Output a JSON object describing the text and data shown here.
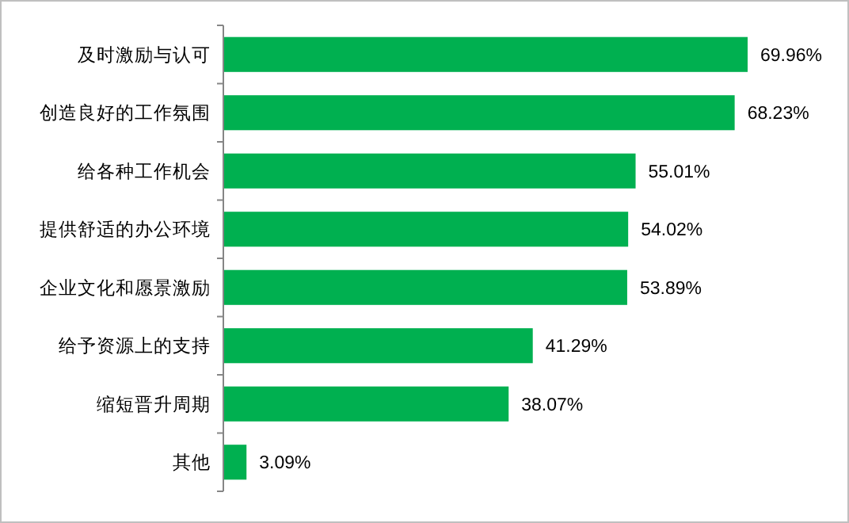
{
  "chart_data": {
    "type": "bar",
    "orientation": "horizontal",
    "color": "#00b050",
    "categories": [
      "及时激励与认可",
      "创造良好的工作氛围",
      "给各种工作机会",
      "提供舒适的办公环境",
      "企业文化和愿景激励",
      "给予资源上的支持",
      "缩短晋升周期",
      "其他"
    ],
    "values": [
      69.96,
      68.23,
      55.01,
      54.02,
      53.89,
      41.29,
      38.07,
      3.09
    ],
    "value_labels": [
      "69.96%",
      "68.23%",
      "55.01%",
      "54.02%",
      "53.89%",
      "41.29%",
      "38.07%",
      "3.09%"
    ]
  }
}
